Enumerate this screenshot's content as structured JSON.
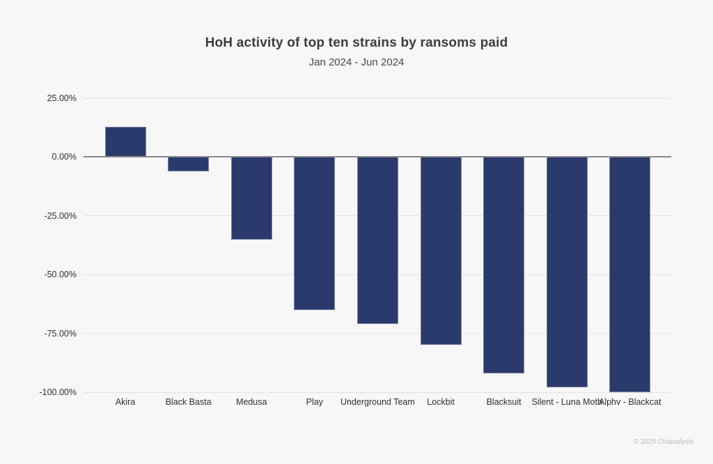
{
  "chart_data": {
    "type": "bar",
    "title": "HoH activity of top ten strains by ransoms paid",
    "subtitle": "Jan 2024 - Jun 2024",
    "categories": [
      "Akira",
      "Black Basta",
      "Medusa",
      "Play",
      "Underground Team",
      "Lockbit",
      "Blacksuit",
      "Silent - Luna Moth",
      "Alphv - Blackcat"
    ],
    "values": [
      13,
      -6,
      -35,
      -65,
      -71,
      -80,
      -92,
      -98,
      -100
    ],
    "unit": "%",
    "ylim": [
      -100,
      25
    ],
    "yticks": [
      25,
      0,
      -25,
      -50,
      -75,
      -100
    ],
    "ytick_labels": [
      "25.00%",
      "0.00%",
      "-25.00%",
      "-50.00%",
      "-75.00%",
      "-100.00%"
    ],
    "grid": true,
    "legend": false,
    "xlabel": "",
    "ylabel": "",
    "bar_color": "#2a3a6c"
  },
  "footer": {
    "copyright": "© 2025 Chainalysis"
  },
  "colors": {
    "background": "#f7f7f8",
    "bar": "#2a3a6c",
    "gridline": "#e3e3e5",
    "zero_line": "#88888c",
    "title_text": "#3d3d40",
    "axis_text": "#2f2f32",
    "footer_text": "#bcbcbe"
  }
}
